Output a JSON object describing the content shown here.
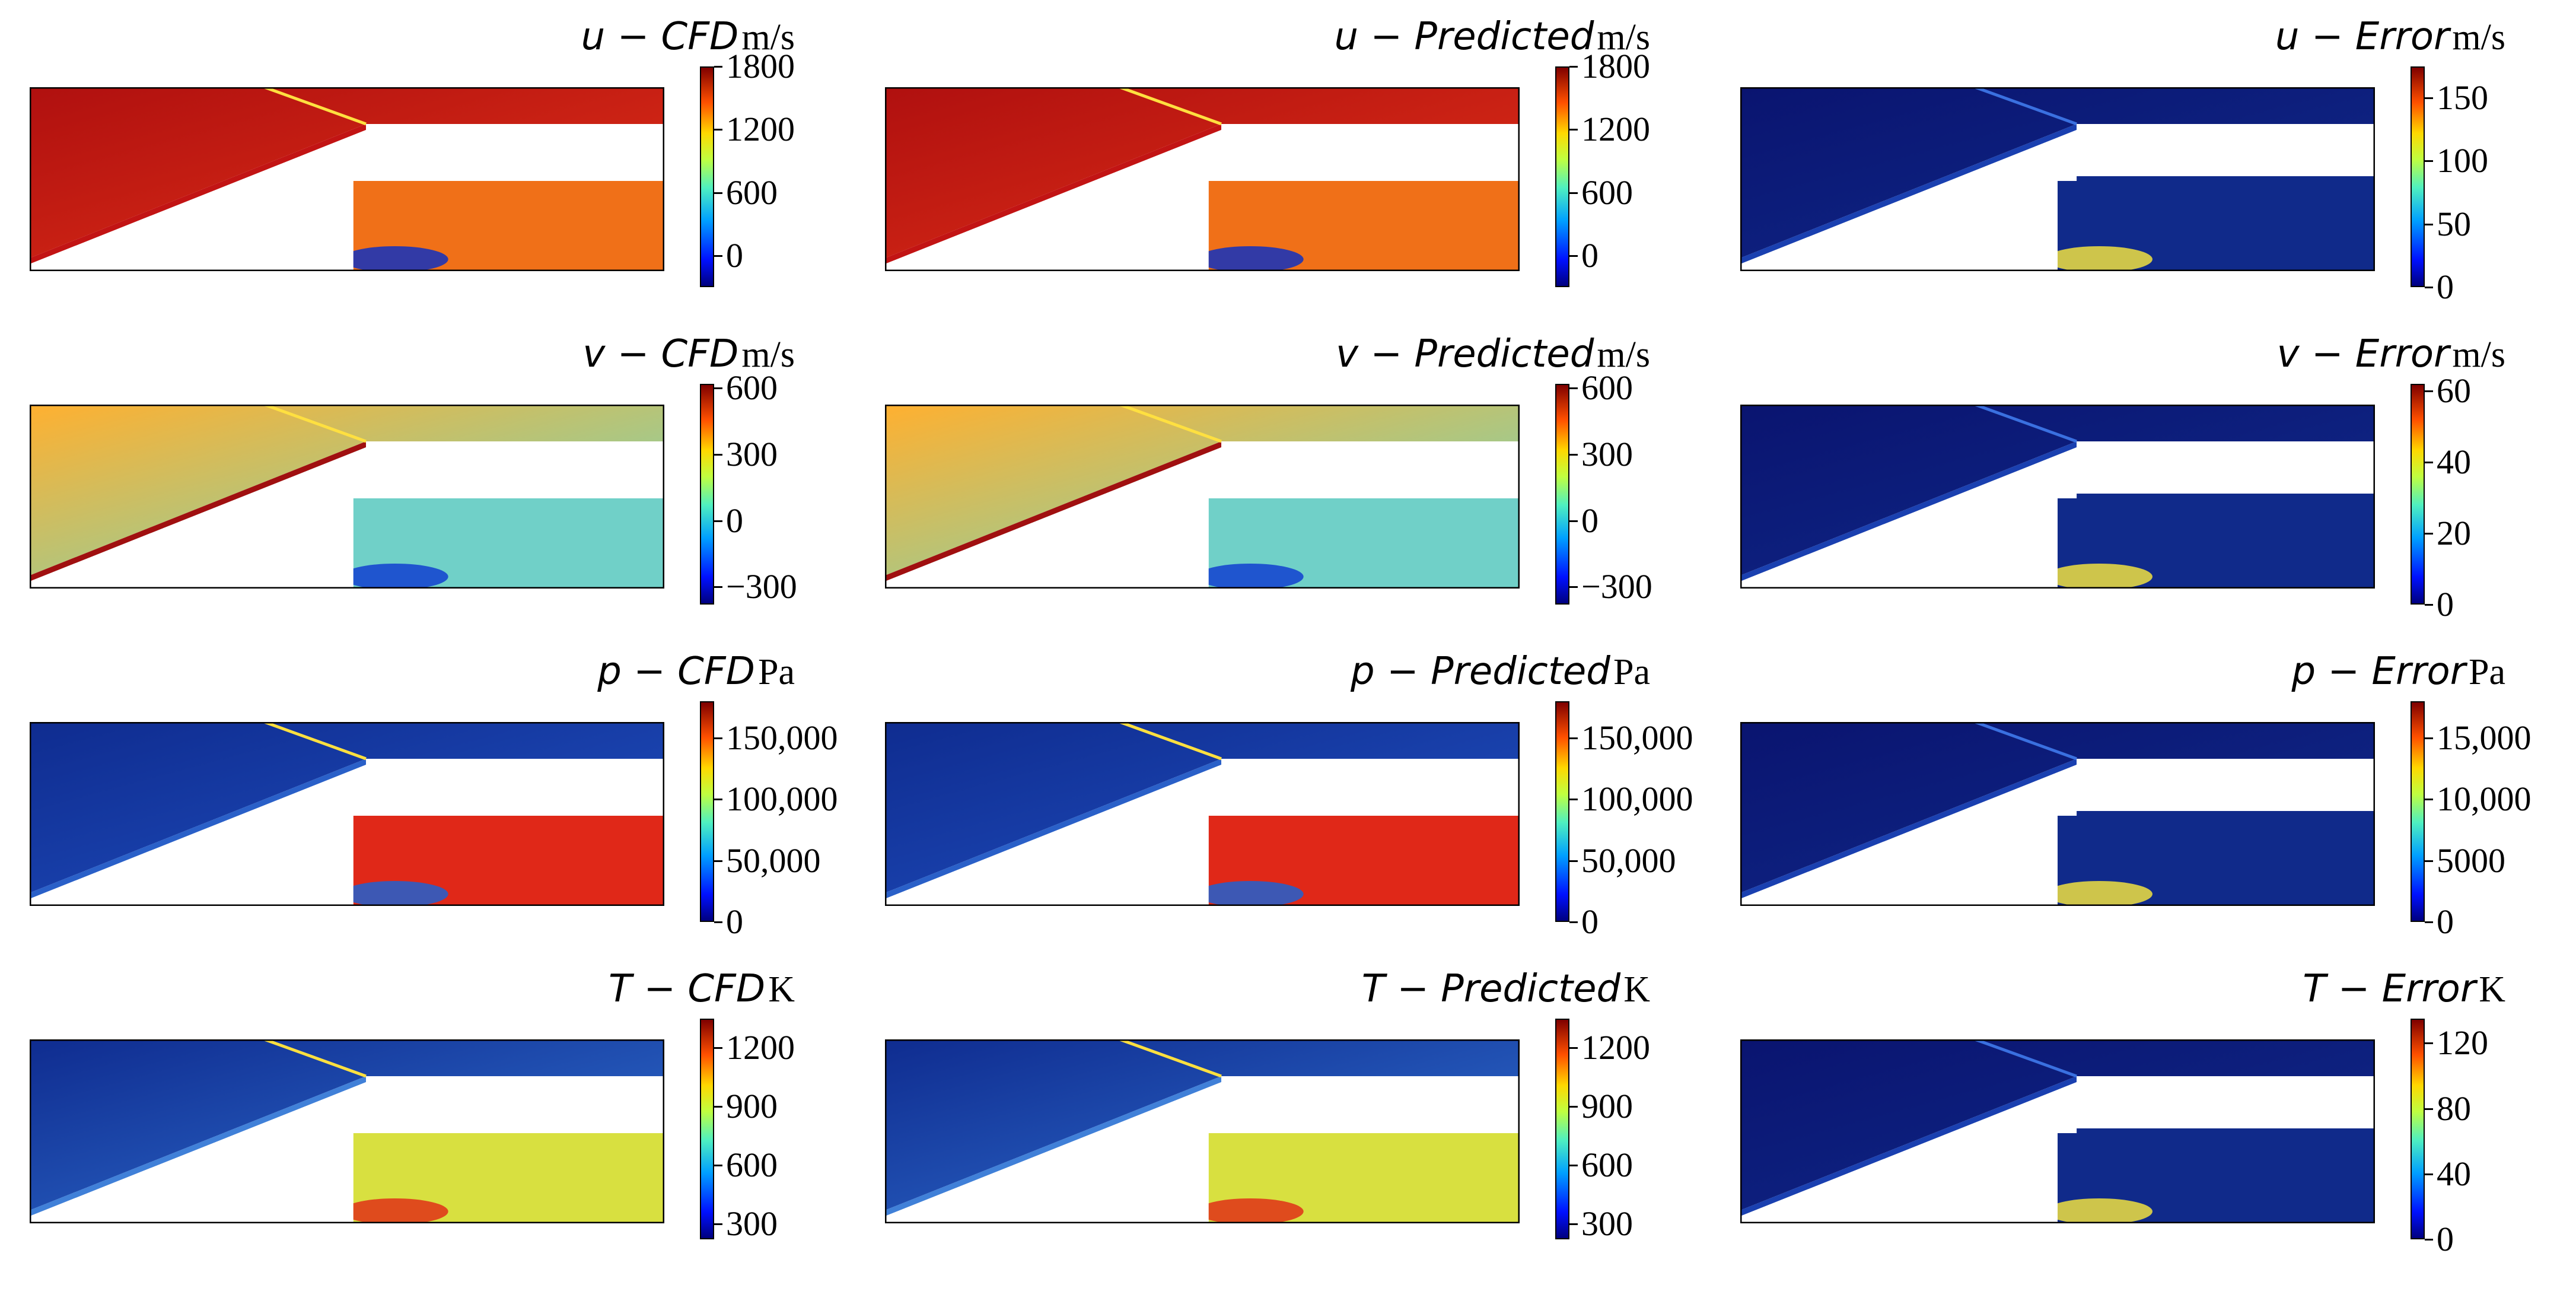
{
  "chart_data": [
    {
      "type": "heatmap",
      "variable": "u",
      "kind": "CFD",
      "unit": "m/s",
      "cmap": "jet",
      "colorbar_ticks": [
        "1800",
        "1200",
        "600",
        "0"
      ],
      "colorbar_values": [
        1800,
        1200,
        600,
        0
      ],
      "colorbar_range": [
        -300,
        1800
      ]
    },
    {
      "type": "heatmap",
      "variable": "u",
      "kind": "Predicted",
      "unit": "m/s",
      "cmap": "jet",
      "colorbar_ticks": [
        "1800",
        "1200",
        "600",
        "0"
      ],
      "colorbar_values": [
        1800,
        1200,
        600,
        0
      ],
      "colorbar_range": [
        -300,
        1800
      ]
    },
    {
      "type": "heatmap",
      "variable": "u",
      "kind": "Error",
      "unit": "m/s",
      "cmap": "jet",
      "colorbar_ticks": [
        "150",
        "100",
        "50",
        "0"
      ],
      "colorbar_values": [
        150,
        100,
        50,
        0
      ],
      "colorbar_range": [
        0,
        175
      ]
    },
    {
      "type": "heatmap",
      "variable": "v",
      "kind": "CFD",
      "unit": "m/s",
      "cmap": "jet",
      "colorbar_ticks": [
        "600",
        "300",
        "0",
        "−300"
      ],
      "colorbar_values": [
        600,
        300,
        0,
        -300
      ],
      "colorbar_range": [
        -380,
        620
      ]
    },
    {
      "type": "heatmap",
      "variable": "v",
      "kind": "Predicted",
      "unit": "m/s",
      "cmap": "jet",
      "colorbar_ticks": [
        "600",
        "300",
        "0",
        "−300"
      ],
      "colorbar_values": [
        600,
        300,
        0,
        -300
      ],
      "colorbar_range": [
        -380,
        620
      ]
    },
    {
      "type": "heatmap",
      "variable": "v",
      "kind": "Error",
      "unit": "m/s",
      "cmap": "jet",
      "colorbar_ticks": [
        "60",
        "40",
        "20",
        "0"
      ],
      "colorbar_values": [
        60,
        40,
        20,
        0
      ],
      "colorbar_range": [
        0,
        62
      ]
    },
    {
      "type": "heatmap",
      "variable": "p",
      "kind": "CFD",
      "unit": "Pa",
      "cmap": "jet",
      "colorbar_ticks": [
        "150,000",
        "100,000",
        "50,000",
        "0"
      ],
      "colorbar_values": [
        150000,
        100000,
        50000,
        0
      ],
      "colorbar_range": [
        0,
        180000
      ]
    },
    {
      "type": "heatmap",
      "variable": "p",
      "kind": "Predicted",
      "unit": "Pa",
      "cmap": "jet",
      "colorbar_ticks": [
        "150,000",
        "100,000",
        "50,000",
        "0"
      ],
      "colorbar_values": [
        150000,
        100000,
        50000,
        0
      ],
      "colorbar_range": [
        0,
        180000
      ]
    },
    {
      "type": "heatmap",
      "variable": "p",
      "kind": "Error",
      "unit": "Pa",
      "cmap": "jet",
      "colorbar_ticks": [
        "15,000",
        "10,000",
        "5000",
        "0"
      ],
      "colorbar_values": [
        15000,
        10000,
        5000,
        0
      ],
      "colorbar_range": [
        0,
        18000
      ]
    },
    {
      "type": "heatmap",
      "variable": "T",
      "kind": "CFD",
      "unit": "K",
      "cmap": "jet",
      "colorbar_ticks": [
        "1200",
        "900",
        "600",
        "300"
      ],
      "colorbar_values": [
        1200,
        900,
        600,
        300
      ],
      "colorbar_range": [
        220,
        1350
      ]
    },
    {
      "type": "heatmap",
      "variable": "T",
      "kind": "Predicted",
      "unit": "K",
      "cmap": "jet",
      "colorbar_ticks": [
        "1200",
        "900",
        "600",
        "300"
      ],
      "colorbar_values": [
        1200,
        900,
        600,
        300
      ],
      "colorbar_range": [
        220,
        1350
      ]
    },
    {
      "type": "heatmap",
      "variable": "T",
      "kind": "Error",
      "unit": "K",
      "cmap": "jet",
      "colorbar_ticks": [
        "120",
        "80",
        "40",
        "0"
      ],
      "colorbar_values": [
        120,
        80,
        40,
        0
      ],
      "colorbar_range": [
        0,
        135
      ]
    }
  ],
  "colors": {
    "jet_low": "#00007f",
    "jet_mid": "#7fff7f",
    "jet_high": "#7f0000"
  }
}
